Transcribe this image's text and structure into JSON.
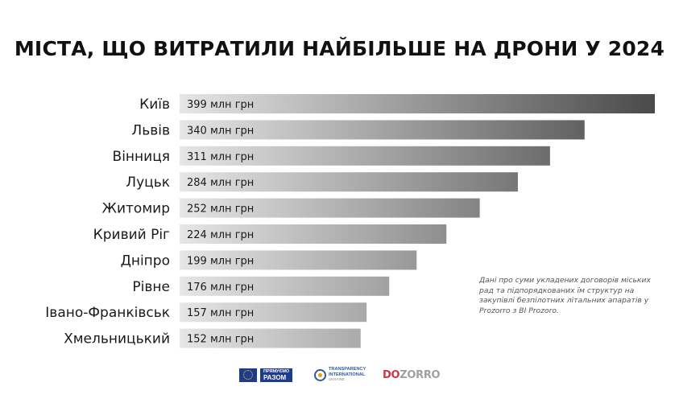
{
  "chart_data": {
    "type": "bar",
    "orientation": "horizontal",
    "title": "МІСТА, ЩО ВИТРАТИЛИ НАЙБІЛЬШЕ НА ДРОНИ У 2024",
    "categories": [
      "Київ",
      "Львів",
      "Вінниця",
      "Луцьк",
      "Житомир",
      "Кривий Ріг",
      "Дніпро",
      "Рівне",
      "Івано-Франківськ",
      "Хмельницький"
    ],
    "values": [
      399,
      340,
      311,
      284,
      252,
      224,
      199,
      176,
      157,
      152
    ],
    "value_labels": [
      "399 млн грн",
      "340 млн грн",
      "311 млн грн",
      "284 млн грн",
      "252 млн грн",
      "224 млн грн",
      "199 млн грн",
      "176 млн грн",
      "157 млн грн",
      "152 млн грн"
    ],
    "unit": "млн грн",
    "xlim": [
      0,
      399
    ],
    "grid": false,
    "legend": "none",
    "colors": {
      "gradient_start": "#e6e6e6",
      "gradient_end": "#4a4a4a"
    },
    "annotation": "Дані про суми укладених договорів міських рад та підпорядкованих їм структур на закупівлі безпілотних літальних апаратів у Prozorro з BI Prozoro."
  },
  "logos": {
    "eu": {
      "line1": "ПРЯМУЄМО",
      "line2": "РАЗОМ",
      "icon": "eu-flag-icon"
    },
    "ti": {
      "line1": "TRANSPARENCY",
      "line2": "INTERNATIONAL",
      "line3": "UKRAINE",
      "icon": "ti-globe-icon"
    },
    "dozorro": {
      "text_a": "DO",
      "text_b": "ZORRO"
    }
  }
}
